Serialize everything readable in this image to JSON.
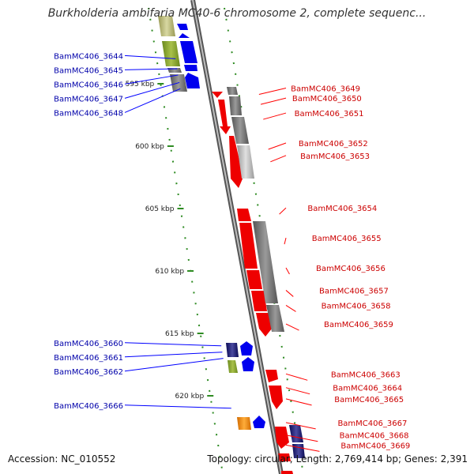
{
  "title": "Burkholderia ambifaria MC40-6 chromosome 2, complete sequenc...",
  "footer": {
    "accession": "Accession: NC_010552",
    "topology": "Topology: circular; Length: 2,769,414 bp; Genes: 2,391"
  },
  "colors": {
    "forward_gene": "#ff0000",
    "reverse_gene": "#0000ff",
    "forward_label": "#cc0000",
    "reverse_label": "#0000aa",
    "backbone": "#808080",
    "tick": "#2e8b22"
  },
  "scale_ticks": [
    {
      "label": "595 kbp",
      "kbp": 595
    },
    {
      "label": "600 kbp",
      "kbp": 600
    },
    {
      "label": "605 kbp",
      "kbp": 605
    },
    {
      "label": "610 kbp",
      "kbp": 610
    },
    {
      "label": "615 kbp",
      "kbp": 615
    },
    {
      "label": "620 kbp",
      "kbp": 620
    }
  ],
  "genes_left": [
    {
      "name": "BamMC406_3644",
      "kbp": 593.0
    },
    {
      "name": "BamMC406_3645",
      "kbp": 593.8
    },
    {
      "name": "BamMC406_3646",
      "kbp": 594.3
    },
    {
      "name": "BamMC406_3647",
      "kbp": 594.9
    },
    {
      "name": "BamMC406_3648",
      "kbp": 595.4
    },
    {
      "name": "BamMC406_3660",
      "kbp": 616.0
    },
    {
      "name": "BamMC406_3661",
      "kbp": 616.5
    },
    {
      "name": "BamMC406_3662",
      "kbp": 617.0
    },
    {
      "name": "BamMC406_3666",
      "kbp": 621.0
    }
  ],
  "genes_right": [
    {
      "name": "BamMC406_3649",
      "kbp": 595.6
    },
    {
      "name": "BamMC406_3650",
      "kbp": 596.4
    },
    {
      "name": "BamMC406_3651",
      "kbp": 597.6
    },
    {
      "name": "BamMC406_3652",
      "kbp": 600.0
    },
    {
      "name": "BamMC406_3653",
      "kbp": 601.0
    },
    {
      "name": "BamMC406_3654",
      "kbp": 605.2
    },
    {
      "name": "BamMC406_3655",
      "kbp": 607.6
    },
    {
      "name": "BamMC406_3656",
      "kbp": 610.0
    },
    {
      "name": "BamMC406_3657",
      "kbp": 611.8
    },
    {
      "name": "BamMC406_3658",
      "kbp": 613.0
    },
    {
      "name": "BamMC406_3659",
      "kbp": 614.5
    },
    {
      "name": "BamMC406_3663",
      "kbp": 618.5
    },
    {
      "name": "BamMC406_3664",
      "kbp": 619.6
    },
    {
      "name": "BamMC406_3665",
      "kbp": 620.5
    },
    {
      "name": "BamMC406_3667",
      "kbp": 622.4
    },
    {
      "name": "BamMC406_3668",
      "kbp": 623.4
    },
    {
      "name": "BamMC406_3669",
      "kbp": 624.2
    }
  ]
}
